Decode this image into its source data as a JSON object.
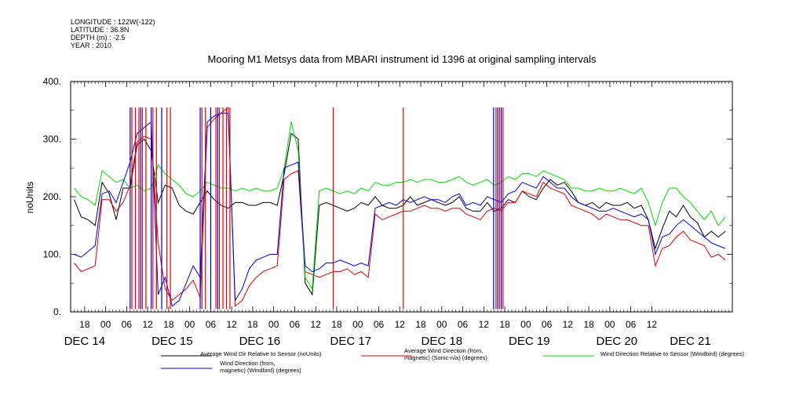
{
  "header": {
    "lines": [
      "LONGITUDE : 122W(-122)",
      "LATITUDE : 36.8N",
      "DEPTH (m) : -2.5",
      "YEAR : 2010"
    ]
  },
  "chart_data": {
    "type": "line",
    "title": "Mooring M1 Metsys data from MBARI instrument id 1396 at original sampling intervals",
    "ylabel": "noUnits",
    "xlabel": "",
    "ylim": [
      0,
      400
    ],
    "xlim_hours": [
      -10,
      179
    ],
    "y_ticks": [
      0,
      100,
      200,
      300,
      400
    ],
    "y_tick_labels": [
      "0.",
      "100.",
      "200.",
      "300.",
      "400."
    ],
    "x_tick_labels": [
      "18",
      "00",
      "06",
      "12",
      "18",
      "00",
      "06",
      "12",
      "18",
      "00",
      "06",
      "12",
      "18",
      "00",
      "06",
      "12",
      "18",
      "00",
      "06",
      "12",
      "18",
      "00",
      "06",
      "12",
      "18",
      "00",
      "06",
      "12"
    ],
    "day_labels": [
      "DEC 14",
      "DEC 15",
      "DEC 16",
      "DEC 17",
      "DEC 18",
      "DEC 19",
      "DEC 20",
      "DEC 21"
    ],
    "grid": false,
    "legend_position": "bottom",
    "series": [
      {
        "name": "Average Wind Dir Relative to Sensor (noUnits)",
        "color": "#000000",
        "x": [
          -9,
          -7,
          -5,
          -3,
          -1,
          1,
          3,
          5,
          7,
          9,
          11,
          13,
          15,
          17,
          19,
          21,
          23,
          25,
          27,
          29,
          31,
          33,
          35,
          37,
          39,
          41,
          43,
          45,
          47,
          49,
          51,
          53,
          55,
          57,
          59,
          61,
          63,
          65,
          67,
          69,
          71,
          73,
          75,
          77,
          79,
          81,
          83,
          85,
          87,
          89,
          91,
          93,
          95,
          97,
          99,
          101,
          103,
          105,
          107,
          109,
          111,
          113,
          115,
          117,
          119,
          121,
          123,
          125,
          127,
          129,
          131,
          133,
          135,
          137,
          139,
          141,
          143,
          145,
          147,
          149,
          151,
          153,
          155,
          157,
          159,
          161,
          163,
          165,
          167,
          169,
          171,
          173,
          175,
          177
        ],
        "values": [
          195,
          165,
          160,
          150,
          225,
          205,
          160,
          215,
          215,
          290,
          300,
          280,
          190,
          220,
          215,
          185,
          175,
          170,
          190,
          210,
          195,
          185,
          180,
          190,
          190,
          185,
          185,
          190,
          190,
          185,
          240,
          310,
          300,
          50,
          30,
          185,
          190,
          185,
          180,
          175,
          180,
          190,
          185,
          200,
          185,
          180,
          180,
          185,
          200,
          185,
          190,
          195,
          190,
          185,
          190,
          200,
          180,
          175,
          175,
          190,
          175,
          180,
          195,
          190,
          210,
          200,
          195,
          215,
          230,
          220,
          225,
          210,
          190,
          185,
          190,
          180,
          190,
          185,
          185,
          190,
          180,
          185,
          160,
          110,
          145,
          175,
          165,
          185,
          165,
          155,
          130,
          140,
          130,
          140
        ]
      },
      {
        "name": "Average Wind Direction (from, magnetic) (Sonic-n/a) (degrees)",
        "color": "#dd0000",
        "x": [
          -9,
          -7,
          -5,
          -3,
          -1,
          1,
          3,
          5,
          7,
          9,
          11,
          13,
          15,
          17,
          19,
          21,
          23,
          25,
          27,
          29,
          31,
          33,
          35,
          37,
          39,
          41,
          43,
          45,
          47,
          49,
          51,
          53,
          55,
          57,
          59,
          61,
          63,
          65,
          67,
          69,
          71,
          73,
          75,
          77,
          79,
          81,
          83,
          85,
          87,
          89,
          91,
          93,
          95,
          97,
          99,
          101,
          103,
          105,
          107,
          109,
          111,
          113,
          115,
          117,
          119,
          121,
          123,
          125,
          127,
          129,
          131,
          133,
          135,
          137,
          139,
          141,
          143,
          145,
          147,
          149,
          151,
          153,
          155,
          157,
          159,
          161,
          163,
          165,
          167,
          169,
          171,
          173,
          175,
          177
        ],
        "values": [
          85,
          70,
          75,
          80,
          195,
          195,
          175,
          190,
          220,
          295,
          305,
          300,
          120,
          40,
          20,
          30,
          40,
          55,
          25,
          320,
          335,
          345,
          355,
          10,
          20,
          45,
          60,
          70,
          75,
          80,
          230,
          240,
          245,
          70,
          65,
          60,
          65,
          70,
          70,
          75,
          65,
          70,
          60,
          170,
          160,
          165,
          170,
          175,
          175,
          180,
          185,
          180,
          180,
          175,
          180,
          180,
          170,
          165,
          160,
          175,
          180,
          175,
          190,
          190,
          210,
          205,
          200,
          225,
          215,
          210,
          205,
          185,
          180,
          175,
          170,
          160,
          170,
          165,
          160,
          160,
          155,
          150,
          150,
          80,
          110,
          115,
          130,
          140,
          125,
          120,
          115,
          95,
          100,
          90
        ]
      },
      {
        "name": "Wind Direction Relative to Sensor (Windbird) (degrees)",
        "color": "#00dd00",
        "x": [
          -9,
          -7,
          -5,
          -3,
          -1,
          1,
          3,
          5,
          7,
          9,
          11,
          13,
          15,
          17,
          19,
          21,
          23,
          25,
          27,
          29,
          31,
          33,
          35,
          37,
          39,
          41,
          43,
          45,
          47,
          49,
          51,
          53,
          55,
          57,
          59,
          61,
          63,
          65,
          67,
          69,
          71,
          73,
          75,
          77,
          79,
          81,
          83,
          85,
          87,
          89,
          91,
          93,
          95,
          97,
          99,
          101,
          103,
          105,
          107,
          109,
          111,
          113,
          115,
          117,
          119,
          121,
          123,
          125,
          127,
          129,
          131,
          133,
          135,
          137,
          139,
          141,
          143,
          145,
          147,
          149,
          151,
          153,
          155,
          157,
          159,
          161,
          163,
          165,
          167,
          169,
          171,
          173,
          175,
          177
        ],
        "values": [
          215,
          200,
          195,
          185,
          245,
          235,
          225,
          230,
          215,
          220,
          210,
          215,
          255,
          240,
          230,
          220,
          205,
          200,
          210,
          225,
          220,
          215,
          215,
          210,
          215,
          210,
          215,
          210,
          210,
          215,
          250,
          330,
          280,
          60,
          40,
          210,
          215,
          210,
          205,
          210,
          205,
          215,
          210,
          225,
          220,
          220,
          225,
          225,
          230,
          225,
          230,
          230,
          225,
          225,
          230,
          235,
          225,
          220,
          225,
          230,
          220,
          225,
          235,
          230,
          240,
          240,
          235,
          245,
          240,
          235,
          230,
          215,
          215,
          210,
          210,
          215,
          210,
          210,
          215,
          210,
          205,
          215,
          190,
          150,
          190,
          215,
          215,
          200,
          190,
          175,
          160,
          175,
          150,
          165
        ]
      },
      {
        "name": "Wind Direction (from, magnetic) (Windbird) (degrees)",
        "color": "#0000dd",
        "x": [
          -9,
          -7,
          -5,
          -3,
          -1,
          1,
          3,
          5,
          7,
          9,
          11,
          13,
          15,
          17,
          19,
          21,
          23,
          25,
          27,
          29,
          31,
          33,
          35,
          37,
          39,
          41,
          43,
          45,
          47,
          49,
          51,
          53,
          55,
          57,
          59,
          61,
          63,
          65,
          67,
          69,
          71,
          73,
          75,
          77,
          79,
          81,
          83,
          85,
          87,
          89,
          91,
          93,
          95,
          97,
          99,
          101,
          103,
          105,
          107,
          109,
          111,
          113,
          115,
          117,
          119,
          121,
          123,
          125,
          127,
          129,
          131,
          133,
          135,
          137,
          139,
          141,
          143,
          145,
          147,
          149,
          151,
          153,
          155,
          157,
          159,
          161,
          163,
          165,
          167,
          169,
          171,
          173,
          175,
          177
        ],
        "values": [
          100,
          95,
          105,
          115,
          205,
          210,
          190,
          225,
          260,
          310,
          320,
          330,
          30,
          60,
          10,
          20,
          50,
          80,
          60,
          330,
          340,
          345,
          345,
          20,
          40,
          75,
          90,
          95,
          100,
          100,
          250,
          255,
          260,
          80,
          70,
          75,
          85,
          85,
          90,
          85,
          80,
          85,
          80,
          180,
          185,
          190,
          185,
          195,
          190,
          195,
          200,
          195,
          195,
          190,
          200,
          205,
          185,
          190,
          185,
          200,
          195,
          190,
          205,
          210,
          225,
          220,
          215,
          235,
          225,
          215,
          215,
          200,
          190,
          185,
          180,
          175,
          175,
          180,
          175,
          170,
          165,
          170,
          160,
          100,
          130,
          135,
          150,
          160,
          150,
          140,
          130,
          120,
          115,
          110
        ]
      }
    ],
    "spikes": [
      {
        "series": 1,
        "x": [
          7.5,
          8.5,
          9.5,
          10.5,
          11.5,
          13.5,
          14.5,
          17.5,
          18.5,
          27.5,
          28.5,
          31.5,
          32.5,
          33.5,
          34.5,
          35.5,
          65,
          85,
          111.5,
          112.5,
          113.5
        ],
        "low": 5,
        "high": 355
      },
      {
        "series": 3,
        "x": [
          7,
          10,
          13,
          16,
          27,
          30,
          32,
          110.8,
          112,
          113
        ],
        "low": 5,
        "high": 355
      }
    ]
  },
  "legend": [
    {
      "label_lines": [
        "Average Wind Dir Relative to Sensor (noUnits)"
      ],
      "color": "#000000"
    },
    {
      "label_lines": [
        "Average Wind Direction (from,",
        "magnetic) (Sonic-n/a) (degrees)"
      ],
      "color": "#dd0000"
    },
    {
      "label_lines": [
        "Wind Direction Relative to Sensor (Windbird) (degrees)"
      ],
      "color": "#00dd00"
    },
    {
      "label_lines": [
        "Wind Direction (from,",
        "magnetic) (Windbird) (degrees)"
      ],
      "color": "#0000dd"
    }
  ]
}
